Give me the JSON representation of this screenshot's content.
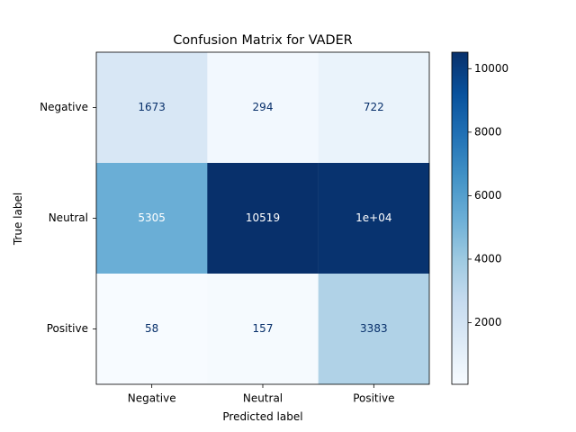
{
  "chart_data": {
    "type": "heatmap",
    "title": "Confusion Matrix for VADER",
    "xlabel": "Predicted label",
    "ylabel": "True label",
    "x_categories": [
      "Negative",
      "Neutral",
      "Positive"
    ],
    "y_categories": [
      "Negative",
      "Neutral",
      "Positive"
    ],
    "values": [
      [
        1673,
        294,
        722
      ],
      [
        5305,
        10519,
        10400
      ],
      [
        58,
        157,
        3383
      ]
    ],
    "cell_labels": [
      [
        "1673",
        "294",
        "722"
      ],
      [
        "5305",
        "10519",
        "1e+04"
      ],
      [
        "58",
        "157",
        "3383"
      ]
    ],
    "colormap": "Blues",
    "colorbar": {
      "min": 58,
      "max": 10519,
      "ticks": [
        2000,
        4000,
        6000,
        8000,
        10000
      ],
      "tick_labels": [
        "2000",
        "4000",
        "6000",
        "8000",
        "10000"
      ]
    },
    "text_colors": {
      "light": "#ffffff",
      "dark": "#08306b"
    }
  }
}
